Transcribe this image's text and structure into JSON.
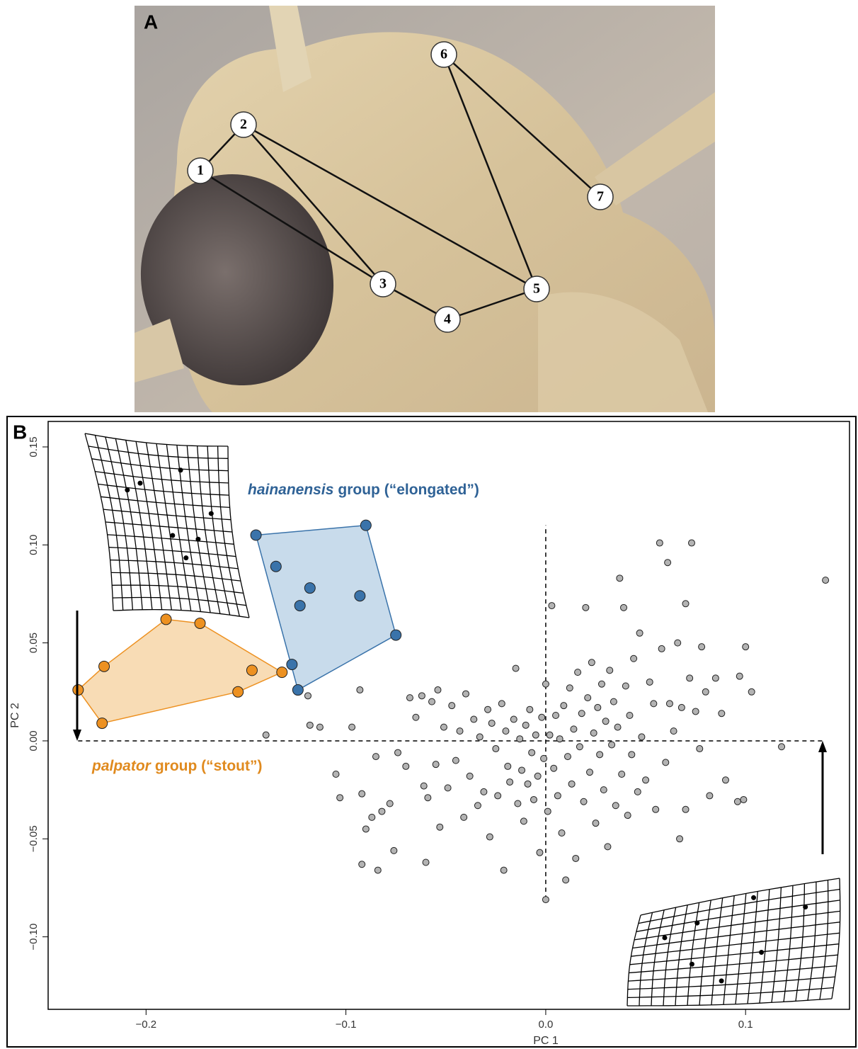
{
  "panel_a": {
    "label": "A",
    "landmarks": [
      "1",
      "2",
      "3",
      "4",
      "5",
      "6",
      "7"
    ]
  },
  "chart_data": {
    "type": "scatter",
    "panel_label": "B",
    "x_label": "PC 1",
    "y_label": "PC 2",
    "xlim": [
      -0.249,
      0.152
    ],
    "ylim": [
      -0.137,
      0.163
    ],
    "xticks": [
      {
        "value": -0.2,
        "label": "−0.2"
      },
      {
        "value": -0.1,
        "label": "−0.1"
      },
      {
        "value": 0,
        "label": "0.0"
      },
      0.1
    ],
    "yticks": [
      {
        "value": -0.1,
        "label": "−0.10"
      },
      {
        "value": -0.05,
        "label": "−0.05"
      },
      {
        "value": 0,
        "label": "0.00"
      },
      0.05,
      {
        "value": 0.1,
        "label": "0.10"
      },
      0.15
    ],
    "annotations": [
      {
        "italic": "hainanensis",
        "text": "group (“elongated”)",
        "color": "#2f6296"
      },
      {
        "italic": "palpator",
        "text": "group (“stout”)",
        "color": "#e08a1e"
      }
    ],
    "series": [
      {
        "color": "#b3b3b3",
        "x": [
          -0.14,
          -0.119,
          -0.118,
          -0.113,
          -0.105,
          -0.103,
          -0.097,
          -0.093,
          -0.092,
          -0.092,
          -0.09,
          -0.087,
          -0.085,
          -0.084,
          -0.082,
          -0.078,
          -0.076,
          -0.074,
          -0.07,
          -0.068,
          -0.065,
          -0.062,
          -0.061,
          -0.06,
          -0.059,
          -0.057,
          -0.055,
          -0.054,
          -0.053,
          -0.051,
          -0.049,
          -0.047,
          -0.045,
          -0.043,
          -0.041,
          -0.04,
          -0.038,
          -0.036,
          -0.034,
          -0.033,
          -0.031,
          -0.029,
          -0.028,
          -0.027,
          -0.025,
          -0.024,
          -0.022,
          -0.021,
          -0.02,
          -0.019,
          -0.018,
          -0.016,
          -0.015,
          -0.014,
          -0.013,
          -0.012,
          -0.011,
          -0.01,
          -0.009,
          -0.008,
          -0.007,
          -0.006,
          -0.005,
          -0.004,
          -0.003,
          -0.002,
          -0.001,
          0,
          0,
          0.001,
          0.002,
          0.003,
          0.004,
          0.005,
          0.006,
          0.007,
          0.008,
          0.009,
          0.01,
          0.011,
          0.012,
          0.013,
          0.014,
          0.015,
          0.016,
          0.017,
          0.018,
          0.019,
          0.02,
          0.021,
          0.022,
          0.023,
          0.024,
          0.025,
          0.026,
          0.027,
          0.028,
          0.029,
          0.03,
          0.031,
          0.032,
          0.033,
          0.034,
          0.035,
          0.036,
          0.037,
          0.038,
          0.039,
          0.04,
          0.041,
          0.042,
          0.043,
          0.044,
          0.046,
          0.047,
          0.048,
          0.05,
          0.052,
          0.054,
          0.055,
          0.057,
          0.058,
          0.06,
          0.061,
          0.062,
          0.064,
          0.066,
          0.067,
          0.068,
          0.07,
          0.07,
          0.072,
          0.073,
          0.075,
          0.077,
          0.078,
          0.08,
          0.082,
          0.085,
          0.088,
          0.09,
          0.096,
          0.097,
          0.099,
          0.1,
          0.103,
          0.118,
          0.14
        ],
        "values": [
          0.003,
          0.023,
          0.008,
          0.007,
          -0.017,
          -0.029,
          0.007,
          0.026,
          -0.027,
          -0.063,
          -0.045,
          -0.039,
          -0.008,
          -0.066,
          -0.036,
          -0.032,
          -0.056,
          -0.006,
          -0.013,
          0.022,
          0.012,
          0.023,
          -0.023,
          -0.062,
          -0.029,
          0.02,
          -0.012,
          0.026,
          -0.044,
          0.007,
          -0.024,
          0.018,
          -0.01,
          0.005,
          -0.039,
          0.024,
          -0.018,
          0.011,
          -0.033,
          0.002,
          -0.026,
          0.016,
          -0.049,
          0.009,
          -0.004,
          -0.028,
          0.019,
          -0.066,
          0.005,
          -0.013,
          -0.021,
          0.011,
          0.037,
          -0.032,
          0.001,
          -0.015,
          -0.041,
          0.008,
          -0.022,
          0.016,
          -0.006,
          -0.03,
          0.003,
          -0.018,
          -0.057,
          0.012,
          -0.009,
          0.029,
          -0.081,
          -0.036,
          0.003,
          0.069,
          -0.014,
          0.013,
          -0.028,
          0.001,
          -0.047,
          0.018,
          -0.071,
          -0.008,
          0.027,
          -0.022,
          0.006,
          -0.06,
          0.035,
          -0.003,
          0.014,
          -0.031,
          0.068,
          0.022,
          -0.016,
          0.04,
          0.004,
          -0.042,
          0.017,
          -0.007,
          0.029,
          -0.025,
          0.01,
          -0.054,
          0.036,
          -0.002,
          0.02,
          -0.033,
          0.007,
          0.083,
          -0.017,
          0.068,
          0.028,
          -0.038,
          0.013,
          -0.007,
          0.042,
          -0.026,
          0.055,
          0.002,
          -0.02,
          0.03,
          0.019,
          -0.035,
          0.101,
          0.047,
          -0.011,
          0.091,
          0.019,
          0.005,
          0.05,
          -0.05,
          0.017,
          0.07,
          -0.035,
          0.032,
          0.101,
          0.015,
          -0.004,
          0.048,
          0.025,
          -0.028,
          0.032,
          0.014,
          -0.02,
          -0.031,
          0.033,
          -0.03,
          0.048,
          0.025,
          -0.003,
          0.082
        ]
      },
      {
        "color": "#ed9121",
        "hull_fill": "#f8dcb5",
        "x": [
          -0.234,
          -0.221,
          -0.222,
          -0.19,
          -0.173,
          -0.154,
          -0.147,
          -0.132
        ],
        "values": [
          0.026,
          0.038,
          0.009,
          0.062,
          0.06,
          0.025,
          0.036,
          0.035
        ]
      },
      {
        "color": "#3a73aa",
        "hull_fill": "#c8dbeb",
        "x": [
          -0.145,
          -0.135,
          -0.118,
          -0.123,
          -0.09,
          -0.093,
          -0.075,
          -0.127,
          -0.124
        ],
        "values": [
          0.105,
          0.089,
          0.078,
          0.069,
          0.11,
          0.074,
          0.054,
          0.039,
          0.026
        ]
      }
    ]
  }
}
